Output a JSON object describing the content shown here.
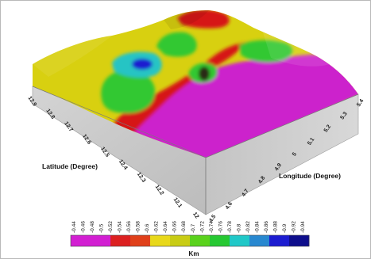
{
  "chart_data": {
    "type": "surface",
    "x_axis": {
      "title": "Longitude (Degree)",
      "ticks": [
        "4.5",
        "4.6",
        "4.7",
        "4.8",
        "4.9",
        "5",
        "5.1",
        "5.2",
        "5.3",
        "5.4"
      ]
    },
    "y_axis": {
      "title": "Latitude (Degree)",
      "ticks": [
        "12",
        "12.1",
        "12.2",
        "12.3",
        "12.4",
        "12.5",
        "12.6",
        "12.7",
        "12.8",
        "12.9"
      ]
    },
    "colorbar": {
      "unit": "Km",
      "ticks": [
        "-0.44",
        "-0.46",
        "-0.48",
        "-0.5",
        "-0.52",
        "-0.54",
        "-0.56",
        "-0.58",
        "-0.6",
        "-0.62",
        "-0.64",
        "-0.66",
        "-0.68",
        "-0.7",
        "-0.72",
        "-0.74",
        "-0.76",
        "-0.78",
        "-0.8",
        "-0.82",
        "-0.84",
        "-0.86",
        "-0.88",
        "-0.9",
        "-0.92",
        "-0.94"
      ],
      "colors": [
        "#d21fd2",
        "#d21fd2",
        "#dc2020",
        "#e0401a",
        "#e8d81a",
        "#c8cc14",
        "#5ad21c",
        "#26c832",
        "#20c8c8",
        "#2888d0",
        "#1c1cd0",
        "#0e0e8c"
      ]
    },
    "colors": {
      "magenta": "#cc22cc",
      "red": "#d61818",
      "yellow": "#d8d010",
      "green": "#30c830",
      "cyan": "#28c4c4",
      "blue": "#1a1ad0",
      "side": "#c8c8c8"
    }
  }
}
